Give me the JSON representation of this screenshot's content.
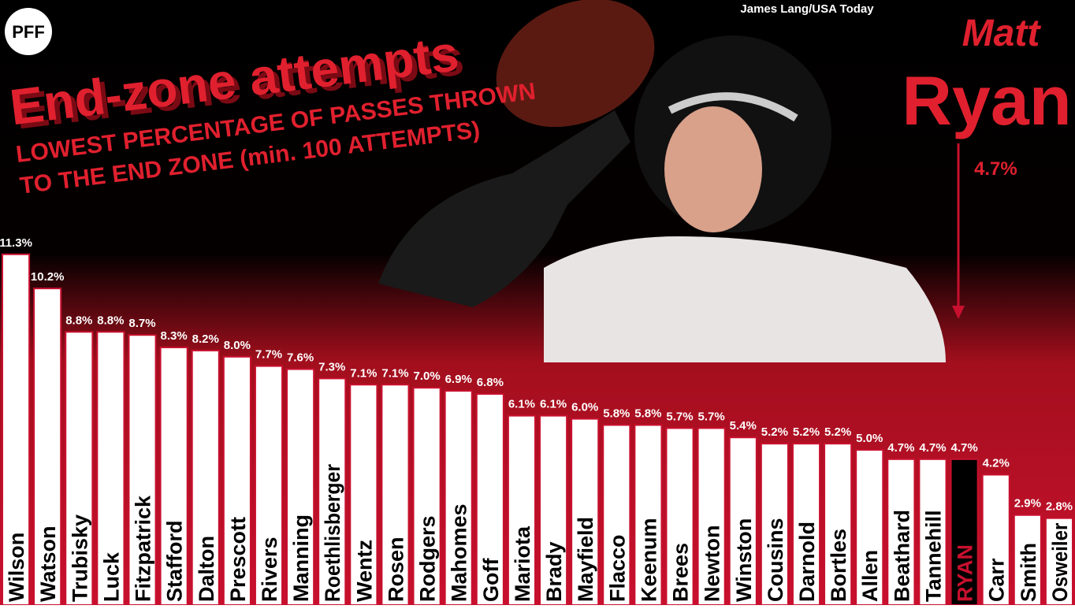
{
  "chart_data": {
    "type": "bar",
    "logo": "PFF",
    "title": "End-zone attempts",
    "subtitle": [
      "LOWEST PERCENTAGE OF PASSES THROWN",
      "TO THE END ZONE (min. 100 ATTEMPTS)"
    ],
    "credit": "James Lang/USA Today",
    "callout": {
      "first_name": "Matt",
      "last_name": "Ryan",
      "text": "4.7%"
    },
    "categories": [
      "Wilson",
      "Watson",
      "Trubisky",
      "Luck",
      "Fitzpatrick",
      "Stafford",
      "Dalton",
      "Prescott",
      "Rivers",
      "Manning",
      "Roethlisberger",
      "Wentz",
      "Rosen",
      "Rodgers",
      "Mahomes",
      "Goff",
      "Mariota",
      "Brady",
      "Mayfield",
      "Flacco",
      "Keenum",
      "Brees",
      "Newton",
      "Winston",
      "Cousins",
      "Darnold",
      "Bortles",
      "Allen",
      "Beathard",
      "Tannehill",
      "RYAN",
      "Carr",
      "Smith",
      "Osweiler"
    ],
    "values": [
      11.3,
      10.2,
      8.8,
      8.8,
      8.7,
      8.3,
      8.2,
      8.0,
      7.7,
      7.6,
      7.3,
      7.1,
      7.1,
      7.0,
      6.9,
      6.8,
      6.1,
      6.1,
      6.0,
      5.8,
      5.8,
      5.7,
      5.7,
      5.4,
      5.2,
      5.2,
      5.2,
      5.0,
      4.7,
      4.7,
      4.7,
      4.2,
      2.9,
      2.8
    ],
    "value_labels": [
      "11.3%",
      "10.2%",
      "8.8%",
      "8.8%",
      "8.7%",
      "8.3%",
      "8.2%",
      "8.0%",
      "7.7%",
      "7.6%",
      "7.3%",
      "7.1%",
      "7.1%",
      "7.0%",
      "6.9%",
      "6.8%",
      "6.1%",
      "6.1%",
      "6.0%",
      "5.8%",
      "5.8%",
      "5.7%",
      "5.7%",
      "5.4%",
      "5.2%",
      "5.2%",
      "5.2%",
      "5.0%",
      "4.7%",
      "4.7%",
      "4.7%",
      "4.2%",
      "2.9%",
      "2.8%"
    ],
    "color": "#ffffff",
    "highlight": {
      "index": 30,
      "color": "#000000",
      "label_color": "#c8102e"
    }
  }
}
